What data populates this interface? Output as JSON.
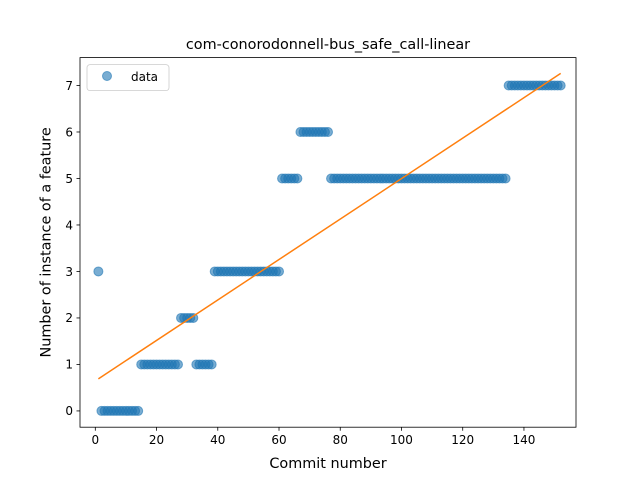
{
  "chart_data": {
    "type": "scatter",
    "title": "com-conorodonnell-bus_safe_call-linear",
    "xlabel": "Commit number",
    "ylabel": "Number of instance of a feature",
    "xlim": [
      -5,
      157
    ],
    "ylim": [
      -0.35,
      7.6
    ],
    "xticks": [
      0,
      20,
      40,
      60,
      80,
      100,
      120,
      140
    ],
    "yticks": [
      0,
      1,
      2,
      3,
      4,
      5,
      6,
      7
    ],
    "grid": false,
    "legend": {
      "placement": "top-left",
      "entries": [
        "data"
      ]
    },
    "colors": {
      "data": "#1f77b4",
      "fit": "#ff7f0e"
    },
    "series": [
      {
        "name": "data",
        "kind": "scatter",
        "points": [
          [
            1,
            3
          ],
          [
            2,
            0
          ],
          [
            3,
            0
          ],
          [
            4,
            0
          ],
          [
            5,
            0
          ],
          [
            6,
            0
          ],
          [
            7,
            0
          ],
          [
            8,
            0
          ],
          [
            9,
            0
          ],
          [
            10,
            0
          ],
          [
            11,
            0
          ],
          [
            12,
            0
          ],
          [
            13,
            0
          ],
          [
            14,
            0
          ],
          [
            15,
            1
          ],
          [
            16,
            1
          ],
          [
            17,
            1
          ],
          [
            18,
            1
          ],
          [
            19,
            1
          ],
          [
            20,
            1
          ],
          [
            21,
            1
          ],
          [
            22,
            1
          ],
          [
            23,
            1
          ],
          [
            24,
            1
          ],
          [
            25,
            1
          ],
          [
            26,
            1
          ],
          [
            27,
            1
          ],
          [
            28,
            2
          ],
          [
            29,
            2
          ],
          [
            30,
            2
          ],
          [
            31,
            2
          ],
          [
            32,
            2
          ],
          [
            33,
            1
          ],
          [
            34,
            1
          ],
          [
            35,
            1
          ],
          [
            36,
            1
          ],
          [
            37,
            1
          ],
          [
            38,
            1
          ],
          [
            39,
            3
          ],
          [
            40,
            3
          ],
          [
            41,
            3
          ],
          [
            42,
            3
          ],
          [
            43,
            3
          ],
          [
            44,
            3
          ],
          [
            45,
            3
          ],
          [
            46,
            3
          ],
          [
            47,
            3
          ],
          [
            48,
            3
          ],
          [
            49,
            3
          ],
          [
            50,
            3
          ],
          [
            51,
            3
          ],
          [
            52,
            3
          ],
          [
            53,
            3
          ],
          [
            54,
            3
          ],
          [
            55,
            3
          ],
          [
            56,
            3
          ],
          [
            57,
            3
          ],
          [
            58,
            3
          ],
          [
            59,
            3
          ],
          [
            60,
            3
          ],
          [
            61,
            5
          ],
          [
            62,
            5
          ],
          [
            63,
            5
          ],
          [
            64,
            5
          ],
          [
            65,
            5
          ],
          [
            66,
            5
          ],
          [
            67,
            6
          ],
          [
            68,
            6
          ],
          [
            69,
            6
          ],
          [
            70,
            6
          ],
          [
            71,
            6
          ],
          [
            72,
            6
          ],
          [
            73,
            6
          ],
          [
            74,
            6
          ],
          [
            75,
            6
          ],
          [
            76,
            6
          ],
          [
            77,
            5
          ],
          [
            78,
            5
          ],
          [
            79,
            5
          ],
          [
            80,
            5
          ],
          [
            81,
            5
          ],
          [
            82,
            5
          ],
          [
            83,
            5
          ],
          [
            84,
            5
          ],
          [
            85,
            5
          ],
          [
            86,
            5
          ],
          [
            87,
            5
          ],
          [
            88,
            5
          ],
          [
            89,
            5
          ],
          [
            90,
            5
          ],
          [
            91,
            5
          ],
          [
            92,
            5
          ],
          [
            93,
            5
          ],
          [
            94,
            5
          ],
          [
            95,
            5
          ],
          [
            96,
            5
          ],
          [
            97,
            5
          ],
          [
            98,
            5
          ],
          [
            99,
            5
          ],
          [
            100,
            5
          ],
          [
            101,
            5
          ],
          [
            102,
            5
          ],
          [
            103,
            5
          ],
          [
            104,
            5
          ],
          [
            105,
            5
          ],
          [
            106,
            5
          ],
          [
            107,
            5
          ],
          [
            108,
            5
          ],
          [
            109,
            5
          ],
          [
            110,
            5
          ],
          [
            111,
            5
          ],
          [
            112,
            5
          ],
          [
            113,
            5
          ],
          [
            114,
            5
          ],
          [
            115,
            5
          ],
          [
            116,
            5
          ],
          [
            117,
            5
          ],
          [
            118,
            5
          ],
          [
            119,
            5
          ],
          [
            120,
            5
          ],
          [
            121,
            5
          ],
          [
            122,
            5
          ],
          [
            123,
            5
          ],
          [
            124,
            5
          ],
          [
            125,
            5
          ],
          [
            126,
            5
          ],
          [
            127,
            5
          ],
          [
            128,
            5
          ],
          [
            129,
            5
          ],
          [
            130,
            5
          ],
          [
            131,
            5
          ],
          [
            132,
            5
          ],
          [
            133,
            5
          ],
          [
            134,
            5
          ],
          [
            135,
            7
          ],
          [
            136,
            7
          ],
          [
            137,
            7
          ],
          [
            138,
            7
          ],
          [
            139,
            7
          ],
          [
            140,
            7
          ],
          [
            141,
            7
          ],
          [
            142,
            7
          ],
          [
            143,
            7
          ],
          [
            144,
            7
          ],
          [
            145,
            7
          ],
          [
            146,
            7
          ],
          [
            147,
            7
          ],
          [
            148,
            7
          ],
          [
            149,
            7
          ],
          [
            150,
            7
          ],
          [
            151,
            7
          ],
          [
            152,
            7
          ]
        ]
      },
      {
        "name": "",
        "kind": "line",
        "points": [
          [
            1,
            0.69
          ],
          [
            152,
            7.26
          ]
        ]
      }
    ]
  }
}
